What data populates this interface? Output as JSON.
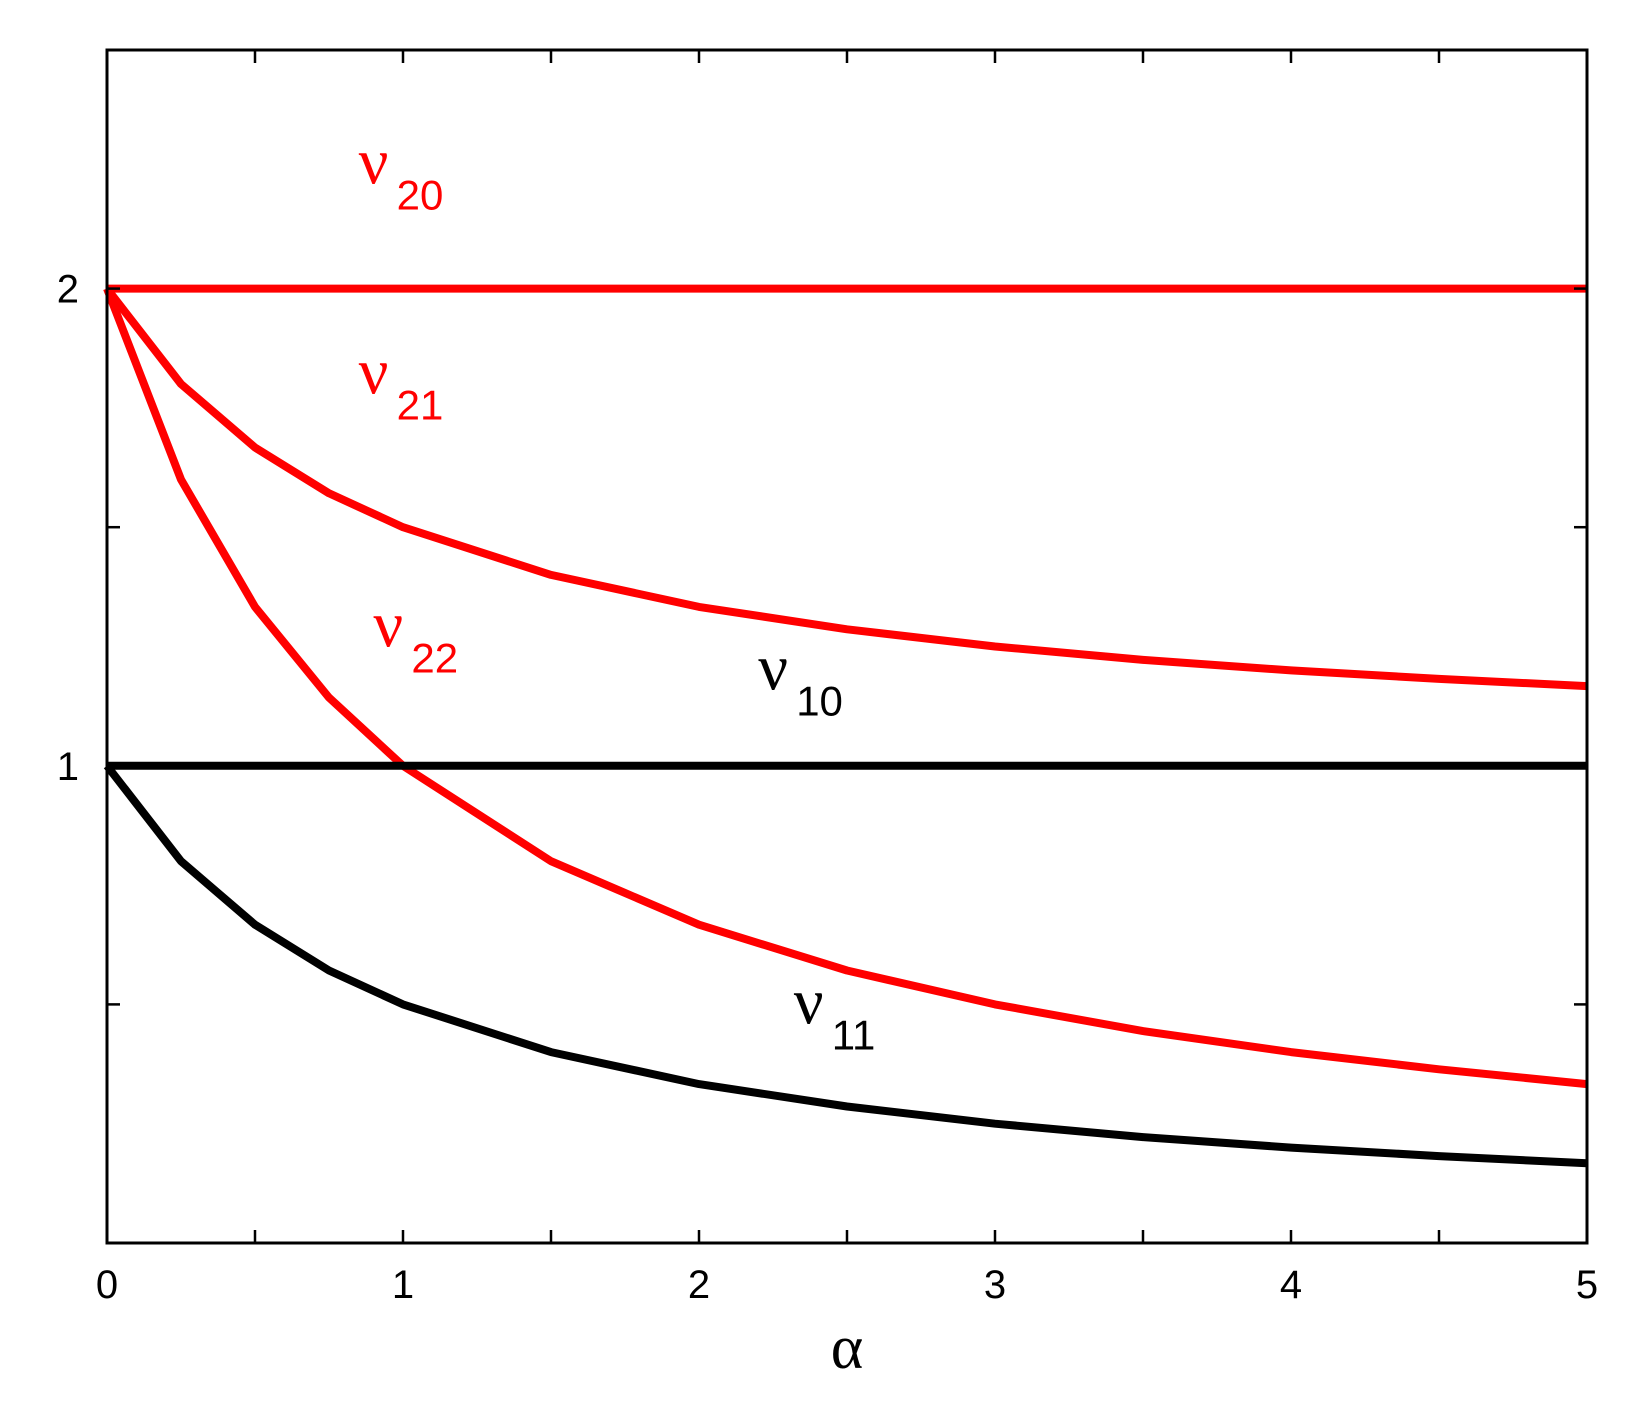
{
  "chart_data": {
    "type": "line",
    "title": "",
    "xlabel": "α",
    "ylabel": "",
    "xlim": [
      0,
      5
    ],
    "ylim": [
      0.0,
      2.5
    ],
    "x_ticks_major": [
      0,
      1,
      2,
      3,
      4,
      5
    ],
    "x_tick_labels": [
      "0",
      "1",
      "2",
      "3",
      "4",
      "5"
    ],
    "x_ticks_minor": [
      0.5,
      1.5,
      2.5,
      3.5,
      4.5
    ],
    "y_ticks_major": [
      1,
      2
    ],
    "y_tick_labels": [
      "1",
      "2"
    ],
    "y_ticks_minor": [
      0.5,
      1.5
    ],
    "grid": false,
    "colors": {
      "red": "#ff0000",
      "black": "#000000"
    },
    "series": [
      {
        "name": "ν20",
        "label_main": "ν",
        "label_sub": "20",
        "color": "#ff0000",
        "x": [
          0,
          5
        ],
        "y": [
          2.0,
          2.0
        ],
        "label_at": [
          0.85,
          2.22
        ]
      },
      {
        "name": "ν21",
        "label_main": "ν",
        "label_sub": "21",
        "color": "#ff0000",
        "x": [
          0,
          0.25,
          0.5,
          0.75,
          1.0,
          1.5,
          2.0,
          2.5,
          3.0,
          3.5,
          4.0,
          4.5,
          5.0
        ],
        "y": [
          2.0,
          1.8,
          1.667,
          1.571,
          1.5,
          1.4,
          1.333,
          1.286,
          1.25,
          1.222,
          1.2,
          1.182,
          1.167
        ],
        "label_at": [
          0.85,
          1.78
        ]
      },
      {
        "name": "ν22",
        "label_main": "ν",
        "label_sub": "22",
        "color": "#ff0000",
        "x": [
          0,
          0.25,
          0.5,
          0.75,
          1.0,
          1.5,
          2.0,
          2.5,
          3.0,
          3.5,
          4.0,
          4.5,
          5.0
        ],
        "y": [
          2.0,
          1.6,
          1.333,
          1.143,
          1.0,
          0.8,
          0.667,
          0.571,
          0.5,
          0.444,
          0.4,
          0.364,
          0.333
        ],
        "label_at": [
          0.9,
          1.25
        ]
      },
      {
        "name": "ν10",
        "label_main": "ν",
        "label_sub": "10",
        "color": "#000000",
        "x": [
          0,
          5
        ],
        "y": [
          1.0,
          1.0
        ],
        "label_at": [
          2.2,
          1.16
        ]
      },
      {
        "name": "ν11",
        "label_main": "ν",
        "label_sub": "11",
        "color": "#000000",
        "x": [
          0,
          0.25,
          0.5,
          0.75,
          1.0,
          1.5,
          2.0,
          2.5,
          3.0,
          3.5,
          4.0,
          4.5,
          5.0
        ],
        "y": [
          1.0,
          0.8,
          0.667,
          0.571,
          0.5,
          0.4,
          0.333,
          0.286,
          0.25,
          0.222,
          0.2,
          0.182,
          0.167
        ],
        "label_at": [
          2.32,
          0.46
        ]
      }
    ]
  }
}
